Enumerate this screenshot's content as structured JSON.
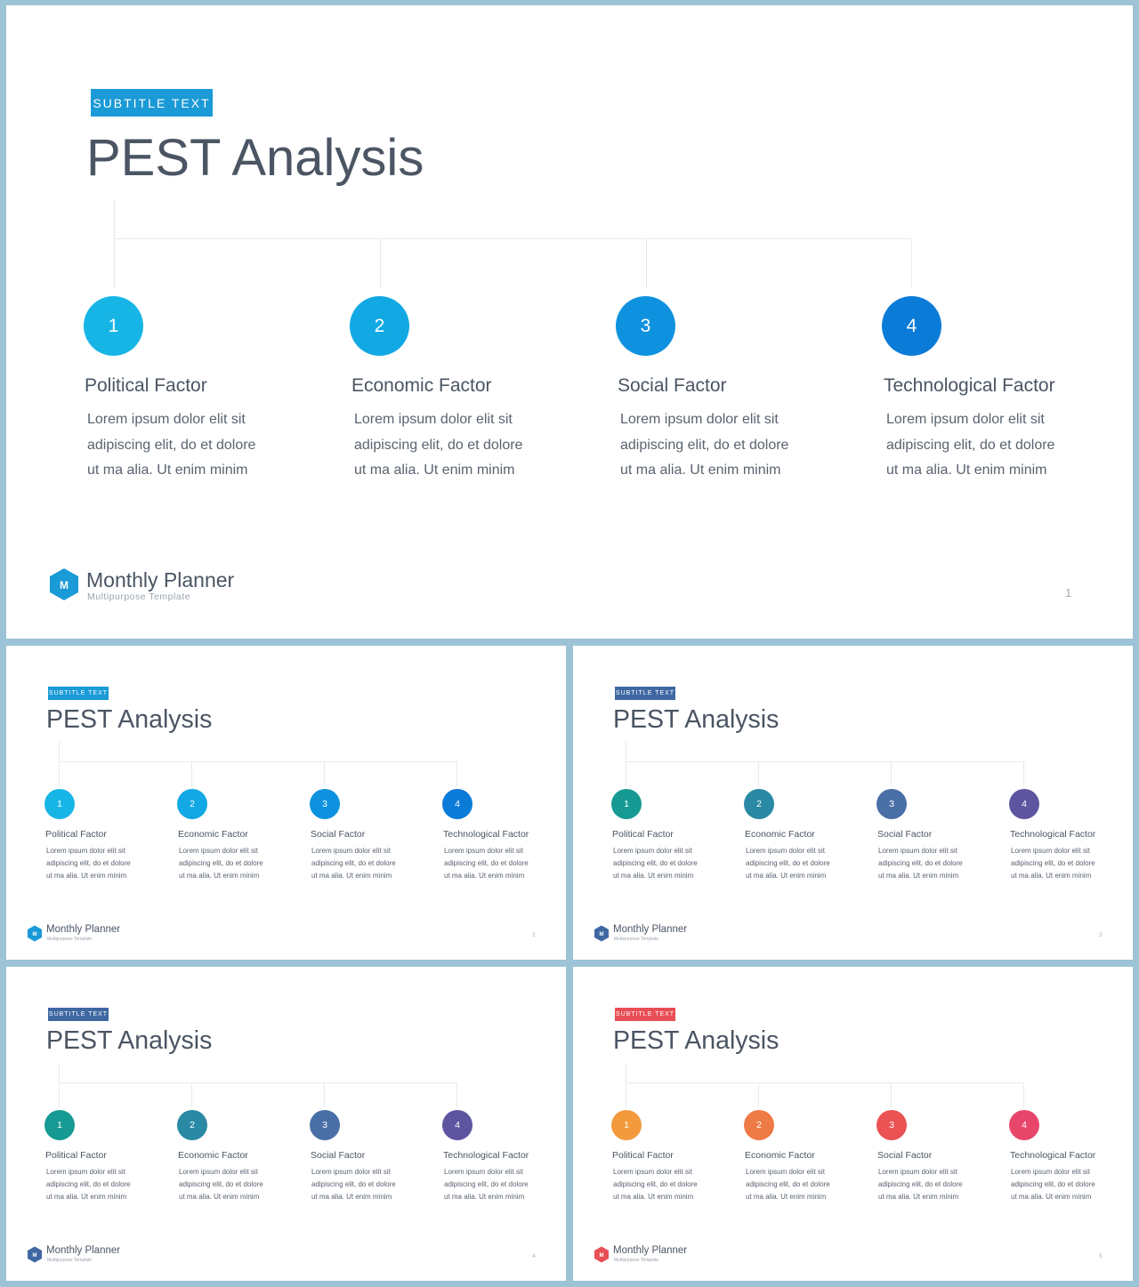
{
  "common": {
    "badge_text": "SUBTITLE TEXT",
    "title": "PEST Analysis",
    "brand_name": "Monthly Planner",
    "brand_sub": "Multipurpose  Template",
    "logo_letter": "M",
    "factors": [
      {
        "num": "1",
        "title": "Political Factor",
        "desc": [
          "Lorem ipsum dolor elit sit",
          "adipiscing elit, do et dolore",
          "ut ma alia. Ut enim minim"
        ]
      },
      {
        "num": "2",
        "title": "Economic Factor",
        "desc": [
          "Lorem ipsum dolor elit sit",
          "adipiscing elit, do et dolore",
          "ut ma alia. Ut enim minim"
        ]
      },
      {
        "num": "3",
        "title": "Social Factor",
        "desc": [
          "Lorem ipsum dolor elit sit",
          "adipiscing elit, do et dolore",
          "ut ma alia. Ut enim minim"
        ]
      },
      {
        "num": "4",
        "title": "Technological Factor",
        "desc": [
          "Lorem ipsum dolor elit sit",
          "adipiscing elit, do et dolore",
          "ut ma alia. Ut enim minim"
        ]
      }
    ]
  },
  "slides": [
    {
      "page": "1",
      "badge_color": "#1a9ad6",
      "logo_color": "#1a9ad6",
      "circle_colors": [
        "#17b5e6",
        "#11a8e4",
        "#0e92df",
        "#0b7bd8"
      ]
    },
    {
      "page": "2",
      "badge_color": "#1a9ad6",
      "logo_color": "#1a9ad6",
      "circle_colors": [
        "#17b5e6",
        "#11a8e4",
        "#0e92df",
        "#0b7bd8"
      ]
    },
    {
      "page": "3",
      "badge_color": "#3f68a3",
      "logo_color": "#3f68a3",
      "circle_colors": [
        "#179a93",
        "#2a89a4",
        "#4a6fa7",
        "#5e55a0"
      ]
    },
    {
      "page": "4",
      "badge_color": "#3f68a3",
      "logo_color": "#3f68a3",
      "circle_colors": [
        "#179a93",
        "#2a89a4",
        "#4a6fa7",
        "#5e55a0"
      ]
    },
    {
      "page": "5",
      "badge_color": "#e84e55",
      "logo_color": "#e84e55",
      "circle_colors": [
        "#f39a3d",
        "#ee7a45",
        "#ea5254",
        "#e8456b"
      ]
    }
  ]
}
